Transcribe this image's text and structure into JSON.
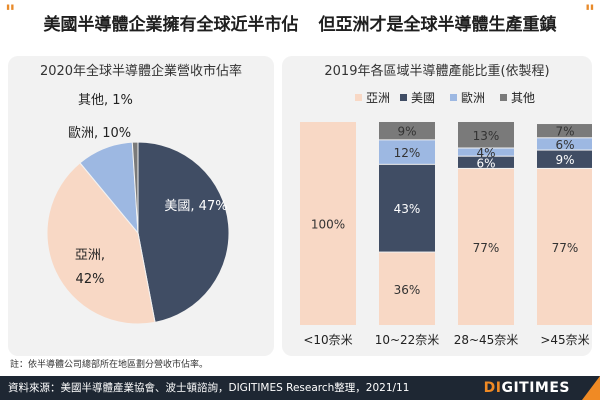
{
  "headline": {
    "part1": "美國半導體企業擁有全球近半市佔",
    "part2": "但亞洲才是全球半導體生產重鎮"
  },
  "chart_data": [
    {
      "type": "pie",
      "title": "2020年全球半導體企業營收市佔率",
      "unit": "%",
      "slices": [
        {
          "name": "美國",
          "value": 47,
          "label": "美國, 47%",
          "color": "#404d64"
        },
        {
          "name": "亞洲",
          "value": 42,
          "label_line1": "亞洲,",
          "label_line2": "42%",
          "color": "#f8d8c5"
        },
        {
          "name": "歐洲",
          "value": 10,
          "label": "歐洲, 10%",
          "color": "#9db8e2"
        },
        {
          "name": "其他",
          "value": 1,
          "label": "其他, 1%",
          "color": "#7a7a7a"
        }
      ]
    },
    {
      "type": "bar",
      "stacked": true,
      "normalized": true,
      "title": "2019年各區域半導體產能比重(依製程)",
      "categories": [
        "<10奈米",
        "10~22奈米",
        "28~45奈米",
        ">45奈米"
      ],
      "series": [
        {
          "name": "亞洲",
          "color": "#f8d8c5",
          "values": [
            100,
            36,
            77,
            77
          ],
          "labels": [
            "100%",
            "36%",
            "77%",
            "77%"
          ]
        },
        {
          "name": "美國",
          "color": "#404d64",
          "values": [
            0,
            43,
            6,
            9
          ],
          "labels": [
            "",
            "43%",
            "6%",
            "9%"
          ]
        },
        {
          "name": "歐洲",
          "color": "#9db8e2",
          "values": [
            0,
            12,
            4,
            6
          ],
          "labels": [
            "",
            "12%",
            "4%",
            "6%"
          ]
        },
        {
          "name": "其他",
          "color": "#7a7a7a",
          "values": [
            0,
            9,
            13,
            7
          ],
          "labels": [
            "",
            "9%",
            "13%",
            "7%"
          ]
        }
      ],
      "ylim": [
        0,
        100
      ],
      "legend": "top"
    }
  ],
  "footnote": "註：依半導體公司總部所在地區劃分營收市佔率。",
  "source": "資料來源：美國半導體產業協會、波士頓諮詢，DIGITIMES Research整理，2021/11",
  "brand": {
    "accent": "DI",
    "rest": "GITIMES"
  }
}
